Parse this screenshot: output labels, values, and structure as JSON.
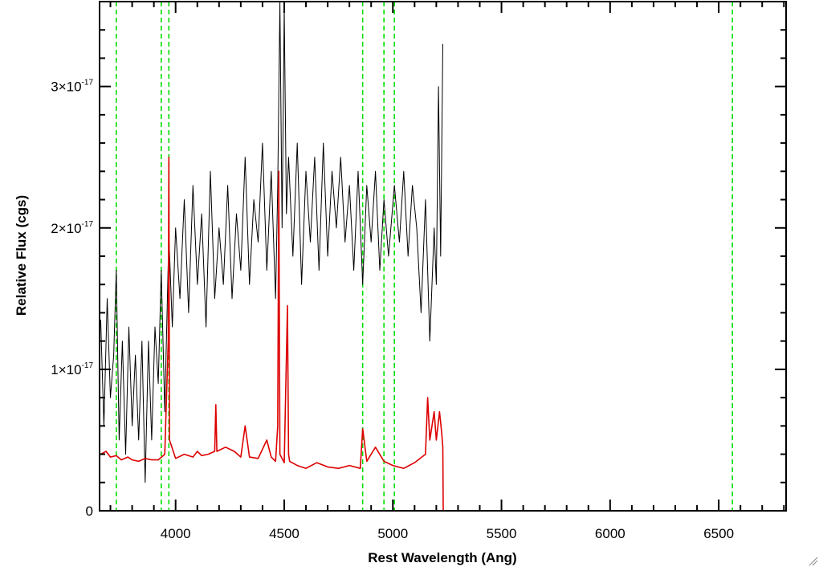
{
  "chart_data": {
    "type": "line",
    "title": "",
    "xlabel": "Rest Wavelength (Ang)",
    "ylabel": "Relative Flux (cgs)",
    "xlim": [
      3650,
      6810
    ],
    "ylim": [
      0,
      3.6e-17
    ],
    "x_ticks": [
      {
        "value": 4000,
        "label": "4000"
      },
      {
        "value": 4500,
        "label": "4500"
      },
      {
        "value": 5000,
        "label": "5000"
      },
      {
        "value": 5500,
        "label": "5500"
      },
      {
        "value": 6000,
        "label": "6000"
      },
      {
        "value": 6500,
        "label": "6500"
      }
    ],
    "y_ticks": [
      {
        "value": 0,
        "mantissa": "0",
        "exponent": ""
      },
      {
        "value": 1e-17,
        "mantissa": "1×10",
        "exponent": "-17"
      },
      {
        "value": 2e-17,
        "mantissa": "2×10",
        "exponent": "-17"
      },
      {
        "value": 3e-17,
        "mantissa": "3×10",
        "exponent": "-17"
      }
    ],
    "grid": false,
    "vertical_lines": {
      "style": "dashed",
      "color": "#00dd00",
      "x": [
        3727,
        3934,
        3969,
        4861,
        4959,
        5007,
        6563
      ]
    },
    "series": [
      {
        "role": "spectrum",
        "color": "#000000",
        "x": [
          3655,
          3670,
          3685,
          3700,
          3715,
          3727,
          3740,
          3755,
          3770,
          3785,
          3800,
          3815,
          3830,
          3845,
          3860,
          3875,
          3890,
          3905,
          3920,
          3934,
          3950,
          3969,
          3985,
          4000,
          4020,
          4040,
          4060,
          4080,
          4100,
          4120,
          4140,
          4160,
          4180,
          4200,
          4220,
          4240,
          4260,
          4280,
          4300,
          4320,
          4340,
          4360,
          4380,
          4400,
          4420,
          4440,
          4460,
          4470,
          4480,
          4490,
          4500,
          4510,
          4520,
          4540,
          4560,
          4580,
          4600,
          4620,
          4640,
          4660,
          4680,
          4700,
          4720,
          4740,
          4760,
          4780,
          4800,
          4820,
          4840,
          4861,
          4880,
          4900,
          4920,
          4940,
          4959,
          4980,
          5007,
          5030,
          5050,
          5070,
          5090,
          5110,
          5130,
          5150,
          5170,
          5190,
          5200,
          5210,
          5220,
          5230
        ],
        "values": [
          1.35e-17,
          6e-18,
          1.5e-17,
          8e-18,
          1.1e-17,
          1.7e-17,
          5e-18,
          1.2e-17,
          4e-18,
          1.3e-17,
          6e-18,
          1.1e-17,
          5e-18,
          1.2e-17,
          2e-18,
          1.2e-17,
          5e-18,
          1.3e-17,
          9e-18,
          1.7e-17,
          7e-18,
          1.95e-17,
          1.3e-17,
          2e-17,
          1.5e-17,
          2.2e-17,
          1.4e-17,
          2.3e-17,
          1.6e-17,
          2.1e-17,
          1.3e-17,
          2.4e-17,
          1.5e-17,
          2e-17,
          1.6e-17,
          2.3e-17,
          1.5e-17,
          2.1e-17,
          1.7e-17,
          2.5e-17,
          1.6e-17,
          2.2e-17,
          1.9e-17,
          2.6e-17,
          1.7e-17,
          2.4e-17,
          1.5e-17,
          2.3e-17,
          3.6e-17,
          2e-17,
          3.55e-17,
          2.1e-17,
          2.5e-17,
          1.8e-17,
          2.6e-17,
          1.6e-17,
          2.4e-17,
          1.9e-17,
          2.5e-17,
          1.7e-17,
          2.6e-17,
          1.8e-17,
          2.4e-17,
          2e-17,
          2.5e-17,
          1.9e-17,
          2.3e-17,
          1.7e-17,
          2.4e-17,
          1.6e-17,
          2.3e-17,
          1.9e-17,
          2.4e-17,
          1.7e-17,
          2.2e-17,
          1.8e-17,
          2.3e-17,
          1.9e-17,
          2.4e-17,
          1.8e-17,
          2.3e-17,
          2e-17,
          1.4e-17,
          2.2e-17,
          1.2e-17,
          2e-17,
          1.6e-17,
          3e-17,
          1.8e-17,
          3.3e-17
        ]
      },
      {
        "role": "error",
        "color": "#dd0000",
        "x": [
          3655,
          3680,
          3700,
          3727,
          3750,
          3780,
          3800,
          3830,
          3860,
          3890,
          3920,
          3950,
          3966,
          3969,
          3972,
          4000,
          4040,
          4080,
          4100,
          4120,
          4150,
          4180,
          4185,
          4190,
          4230,
          4270,
          4300,
          4320,
          4340,
          4380,
          4420,
          4440,
          4460,
          4470,
          4475,
          4480,
          4500,
          4515,
          4520,
          4525,
          4560,
          4600,
          4650,
          4700,
          4750,
          4800,
          4850,
          4861,
          4880,
          4920,
          4959,
          5000,
          5050,
          5100,
          5150,
          5160,
          5170,
          5190,
          5200,
          5215,
          5225,
          5230,
          5232,
          5240,
          6810
        ],
        "values": [
          4e-18,
          4.2e-18,
          3.8e-18,
          3.9e-18,
          3.6e-18,
          3.8e-18,
          3.6e-18,
          3.5e-18,
          3.7e-18,
          3.6e-18,
          3.6e-18,
          4e-18,
          1.2e-17,
          2.5e-17,
          5e-18,
          3.7e-18,
          4e-18,
          3.8e-18,
          4.2e-18,
          3.9e-18,
          4e-18,
          4.2e-18,
          7.5e-18,
          4.2e-18,
          4.5e-18,
          4.2e-18,
          3.8e-18,
          6e-18,
          3.8e-18,
          3.7e-18,
          5e-18,
          3.8e-18,
          3.5e-18,
          6e-18,
          2.4e-17,
          4e-18,
          3.4e-18,
          1.45e-17,
          4e-18,
          3.5e-18,
          3.2e-18,
          3e-18,
          3.4e-18,
          3.1e-18,
          3e-18,
          3.2e-18,
          3e-18,
          5.8e-18,
          3.5e-18,
          4.5e-18,
          3.5e-18,
          3.2e-18,
          3e-18,
          3.4e-18,
          4e-18,
          8e-18,
          5e-18,
          7e-18,
          5e-18,
          7e-18,
          5.5e-18,
          4.5e-18,
          0,
          0,
          0
        ]
      }
    ]
  }
}
